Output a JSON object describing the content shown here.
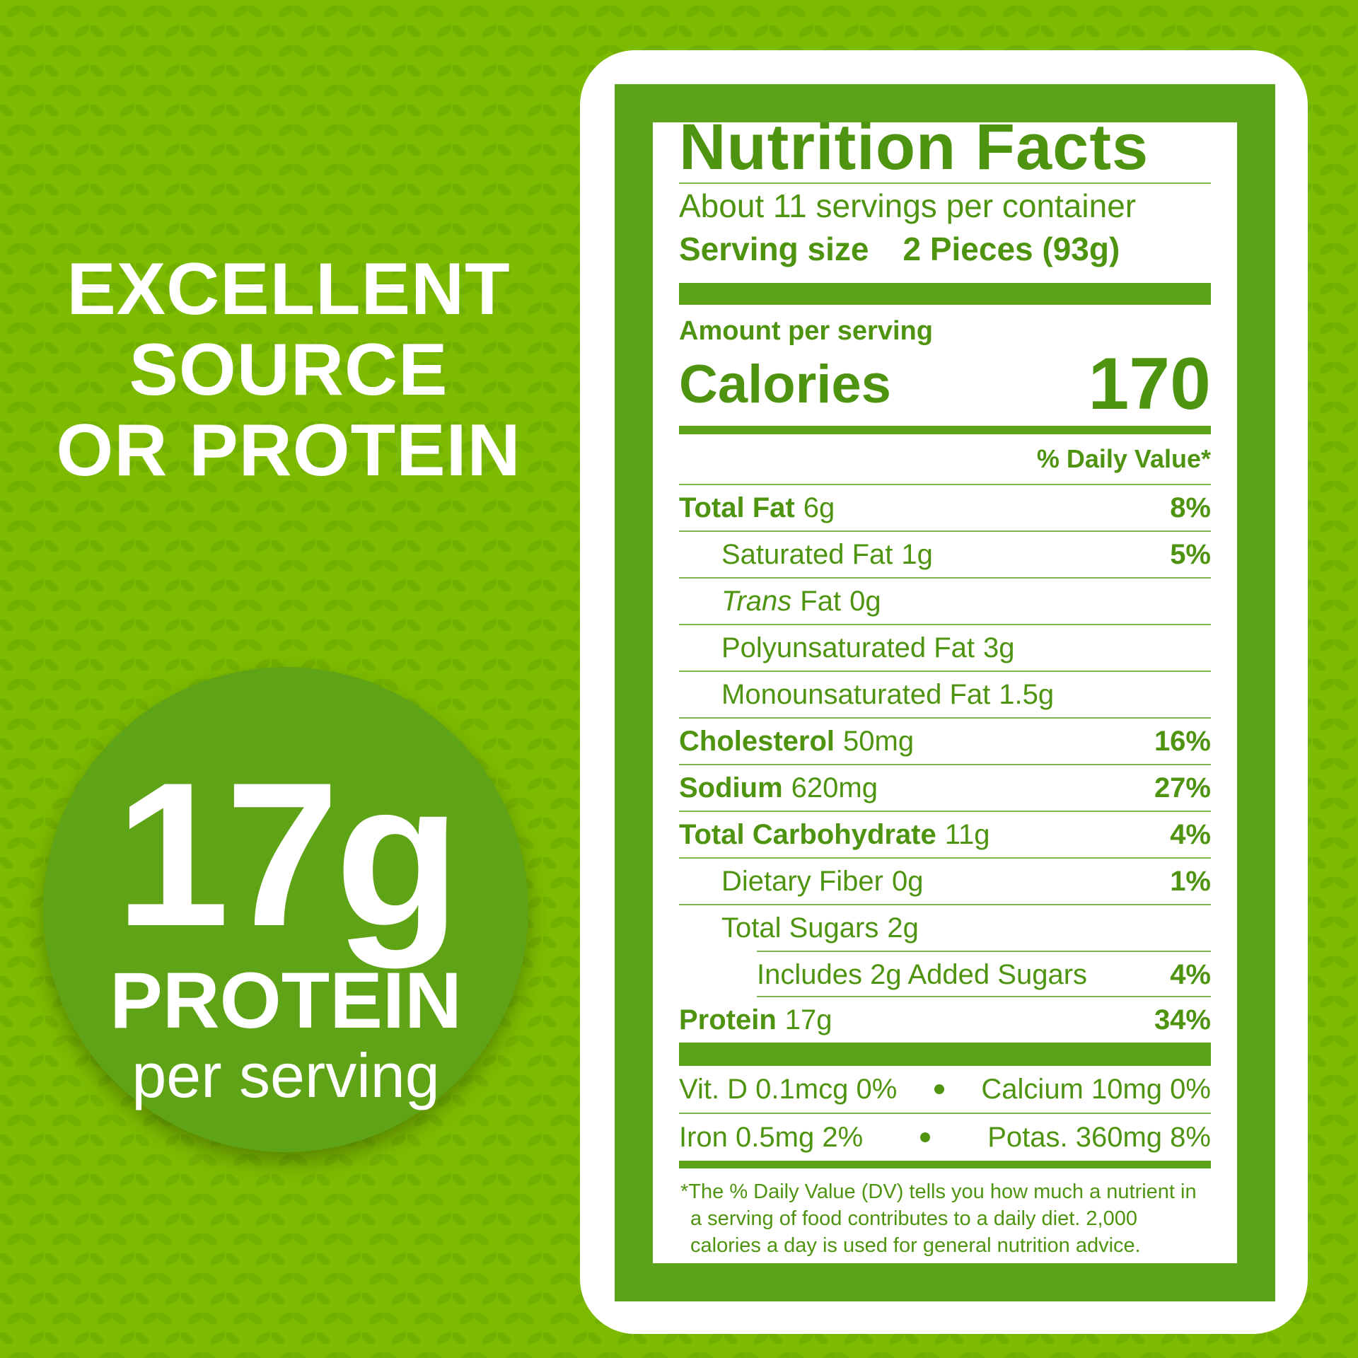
{
  "headline": {
    "lines": [
      "EXCELLENT",
      "SOURCE",
      "OR PROTEIN"
    ]
  },
  "badge": {
    "amount": "17g",
    "label": "PROTEIN",
    "sub": "per serving"
  },
  "label": {
    "title": "Nutrition Facts",
    "servings": "About 11 servings per container",
    "serving_size": {
      "label": "Serving size",
      "value": "2 Pieces (93g)"
    },
    "amount_per_serving": "Amount per serving",
    "calories": {
      "label": "Calories",
      "value": "170"
    },
    "dv_header": "% Daily Value*",
    "rows": [
      {
        "name": "Total Fat",
        "amount": "6g",
        "dv": "8%"
      },
      {
        "name": "Saturated Fat",
        "amount": "1g",
        "dv": "5%"
      },
      {
        "italic": "Trans",
        "name": "Fat",
        "amount": "0g"
      },
      {
        "name": "Polyunsaturated Fat",
        "amount": "3g"
      },
      {
        "name": "Monounsaturated Fat",
        "amount": "1.5g"
      },
      {
        "name": "Cholesterol",
        "amount": "50mg",
        "dv": "16%"
      },
      {
        "name": "Sodium",
        "amount": "620mg",
        "dv": "27%"
      },
      {
        "name": "Total Carbohydrate",
        "amount": "11g",
        "dv": "4%"
      },
      {
        "name": "Dietary Fiber",
        "amount": "0g",
        "dv": "1%"
      },
      {
        "name": "Total Sugars",
        "amount": "2g"
      },
      {
        "name": "Includes 2g Added Sugars",
        "dv": "4%"
      },
      {
        "name": "Protein",
        "amount": "17g",
        "dv": "34%"
      }
    ],
    "vitamins": [
      [
        "Vit. D 0.1mcg 0%",
        "Calcium 10mg 0%"
      ],
      [
        "Iron 0.5mg 2%",
        "Potas. 360mg 8%"
      ]
    ],
    "footnote": "*The % Daily Value (DV) tells you how much a nutrient in a serving of food contributes to a daily diet. 2,000 calories a day is used for general nutrition advice."
  }
}
